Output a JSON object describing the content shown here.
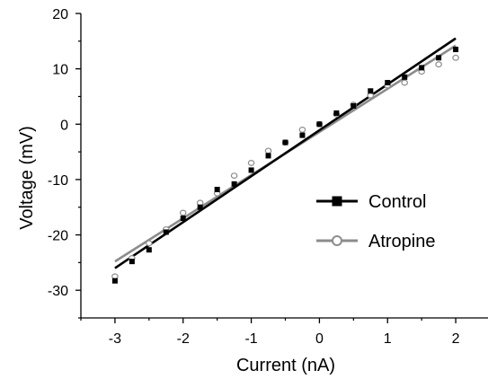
{
  "chart_data": {
    "type": "scatter",
    "title": "",
    "xlabel": "Current (nA)",
    "ylabel": "Voltage (mV)",
    "xlim": [
      -3.5,
      2.5
    ],
    "ylim": [
      -35,
      20
    ],
    "x_ticks": [
      -3,
      -2,
      -1,
      0,
      1,
      2
    ],
    "y_ticks": [
      -30,
      -20,
      -10,
      0,
      10,
      20
    ],
    "grid": false,
    "legend_position": "right",
    "series": [
      {
        "name": "Control",
        "marker": "filled-square",
        "color": "#000000",
        "points": [
          {
            "x": -3,
            "y": -28.3
          },
          {
            "x": -2.75,
            "y": -24.8
          },
          {
            "x": -2.5,
            "y": -22.7
          },
          {
            "x": -2.25,
            "y": -19.5
          },
          {
            "x": -2,
            "y": -17.0
          },
          {
            "x": -1.75,
            "y": -15.0
          },
          {
            "x": -1.5,
            "y": -11.8
          },
          {
            "x": -1.25,
            "y": -10.8
          },
          {
            "x": -1,
            "y": -8.3
          },
          {
            "x": -0.75,
            "y": -5.7
          },
          {
            "x": -0.5,
            "y": -3.3
          },
          {
            "x": -0.25,
            "y": -2.0
          },
          {
            "x": 0,
            "y": 0.0
          },
          {
            "x": 0.25,
            "y": 2.0
          },
          {
            "x": 0.5,
            "y": 3.3
          },
          {
            "x": 0.75,
            "y": 6.0
          },
          {
            "x": 1,
            "y": 7.5
          },
          {
            "x": 1.25,
            "y": 8.5
          },
          {
            "x": 1.5,
            "y": 10.2
          },
          {
            "x": 1.75,
            "y": 12.0
          },
          {
            "x": 2,
            "y": 13.5
          }
        ],
        "fit": {
          "x": [
            -3,
            2
          ],
          "y": [
            -26.0,
            15.5
          ]
        }
      },
      {
        "name": "Atropine",
        "marker": "open-circle",
        "color": "#8c8c8c",
        "points": [
          {
            "x": -3,
            "y": -27.5
          },
          {
            "x": -2.75,
            "y": -24.2
          },
          {
            "x": -2.5,
            "y": -21.5
          },
          {
            "x": -2.25,
            "y": -19.0
          },
          {
            "x": -2,
            "y": -16.0
          },
          {
            "x": -1.75,
            "y": -14.2
          },
          {
            "x": -1.5,
            "y": -12.5
          },
          {
            "x": -1.25,
            "y": -9.3
          },
          {
            "x": -1,
            "y": -7.0
          },
          {
            "x": -0.75,
            "y": -4.8
          },
          {
            "x": -0.5,
            "y": -3.3
          },
          {
            "x": -0.25,
            "y": -1.0
          },
          {
            "x": 0,
            "y": 0.0
          },
          {
            "x": 0.25,
            "y": 1.8
          },
          {
            "x": 0.5,
            "y": 3.5
          },
          {
            "x": 0.75,
            "y": 5.2
          },
          {
            "x": 1,
            "y": 7.0
          },
          {
            "x": 1.25,
            "y": 7.5
          },
          {
            "x": 1.5,
            "y": 9.5
          },
          {
            "x": 1.75,
            "y": 10.8
          },
          {
            "x": 2,
            "y": 12.0
          }
        ],
        "fit": {
          "x": [
            -3,
            2
          ],
          "y": [
            -24.8,
            14.2
          ]
        }
      }
    ]
  }
}
